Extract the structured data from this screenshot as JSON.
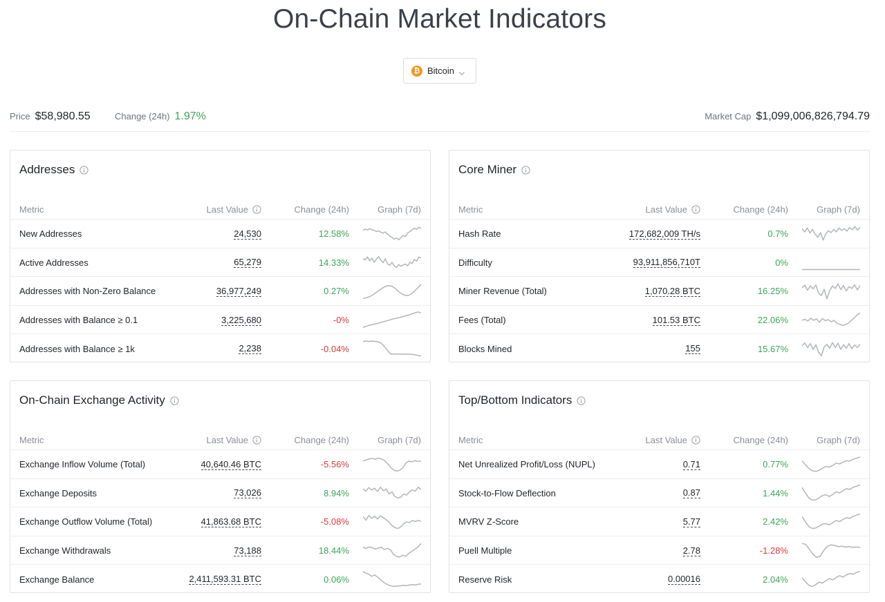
{
  "page": {
    "title": "On-Chain Market Indicators"
  },
  "coin_selector": {
    "label": "Bitcoin",
    "icon": "bitcoin-icon",
    "icon_glyph": "₿",
    "icon_color": "#f7931a"
  },
  "stats": {
    "price_label": "Price",
    "price_value": "$58,980.55",
    "change_label": "Change (24h)",
    "change_value": "1.97%",
    "market_cap_label": "Market Cap",
    "market_cap_value": "$1,099,006,826,794.79"
  },
  "colors": {
    "positive": "#3aa757",
    "negative": "#d93b3b",
    "sparkline": "#b5b9be"
  },
  "panels": [
    {
      "title": "Addresses",
      "headers": {
        "metric": "Metric",
        "last_value": "Last Value",
        "change": "Change (24h)",
        "graph": "Graph (7d)"
      },
      "rows": [
        {
          "metric": "New Addresses",
          "value": "24,530",
          "change": "12.58%",
          "trend": "positive",
          "spark": [
            0.7,
            0.78,
            0.72,
            0.8,
            0.74,
            0.7,
            0.64,
            0.68,
            0.6,
            0.55,
            0.62,
            0.5,
            0.38,
            0.32,
            0.22,
            0.28,
            0.18,
            0.3,
            0.42,
            0.36,
            0.56,
            0.64,
            0.74,
            0.82,
            0.76,
            0.88,
            0.84
          ]
        },
        {
          "metric": "Active Addresses",
          "value": "65,279",
          "change": "14.33%",
          "trend": "positive",
          "spark": [
            0.72,
            0.64,
            0.8,
            0.58,
            0.74,
            0.5,
            0.68,
            0.82,
            0.62,
            0.48,
            0.7,
            0.42,
            0.34,
            0.5,
            0.3,
            0.22,
            0.38,
            0.28,
            0.36,
            0.4,
            0.3,
            0.5,
            0.44,
            0.66,
            0.56,
            0.8,
            0.74
          ]
        },
        {
          "metric": "Addresses with Non-Zero Balance",
          "value": "36,977,249",
          "change": "0.27%",
          "trend": "positive",
          "spark": [
            0.1,
            0.14,
            0.2,
            0.3,
            0.42,
            0.56,
            0.68,
            0.78,
            0.82,
            0.78,
            0.66,
            0.5,
            0.36,
            0.28,
            0.26,
            0.36,
            0.52,
            0.7,
            0.88
          ]
        },
        {
          "metric": "Addresses with Balance ≥ 0.1",
          "value": "3,225,680",
          "change": "-0%",
          "trend": "negative",
          "spark": [
            0.1,
            0.16,
            0.22,
            0.26,
            0.3,
            0.34,
            0.4,
            0.44,
            0.48,
            0.54,
            0.58,
            0.62,
            0.66,
            0.7,
            0.76,
            0.8,
            0.86,
            0.92,
            0.96,
            0.92
          ]
        },
        {
          "metric": "Addresses with Balance ≥ 1k",
          "value": "2,238",
          "change": "-0.04%",
          "trend": "negative",
          "spark": [
            0.9,
            0.92,
            0.9,
            0.92,
            0.9,
            0.88,
            0.8,
            0.62,
            0.4,
            0.2,
            0.2,
            0.2,
            0.2,
            0.19,
            0.2,
            0.19,
            0.18,
            0.16,
            0.12,
            0.08
          ]
        }
      ]
    },
    {
      "title": "Core Miner",
      "headers": {
        "metric": "Metric",
        "last_value": "Last Value",
        "change": "Change (24h)",
        "graph": "Graph (7d)"
      },
      "rows": [
        {
          "metric": "Hash Rate",
          "value": "172,682,009 TH/s",
          "change": "0.7%",
          "trend": "positive",
          "spark": [
            0.8,
            0.62,
            0.84,
            0.56,
            0.76,
            0.48,
            0.32,
            0.58,
            0.16,
            0.52,
            0.68,
            0.58,
            0.76,
            0.62,
            0.84,
            0.7,
            0.8,
            0.66,
            0.86,
            0.74,
            0.92,
            0.72,
            0.88
          ]
        },
        {
          "metric": "Difficulty",
          "value": "93,911,856,710T",
          "change": "0%",
          "trend": "positive",
          "spark": [
            0.1,
            0.1,
            0.1,
            0.1,
            0.1,
            0.1
          ]
        },
        {
          "metric": "Miner Revenue (Total)",
          "value": "1,070.28 BTC",
          "change": "16.25%",
          "trend": "positive",
          "spark": [
            0.7,
            0.84,
            0.56,
            0.8,
            0.64,
            0.86,
            0.4,
            0.26,
            0.62,
            0.08,
            0.54,
            0.8,
            0.66,
            0.92,
            0.6,
            0.82,
            0.52,
            0.76,
            0.66,
            0.86,
            0.58,
            0.82
          ]
        },
        {
          "metric": "Fees (Total)",
          "value": "101.53 BTC",
          "change": "22.06%",
          "trend": "positive",
          "spark": [
            0.5,
            0.56,
            0.46,
            0.62,
            0.5,
            0.58,
            0.4,
            0.6,
            0.48,
            0.54,
            0.42,
            0.5,
            0.34,
            0.28,
            0.22,
            0.26,
            0.34,
            0.5,
            0.64,
            0.8,
            0.92
          ]
        },
        {
          "metric": "Blocks Mined",
          "value": "155",
          "change": "15.67%",
          "trend": "positive",
          "spark": [
            0.66,
            0.82,
            0.56,
            0.78,
            0.46,
            0.72,
            0.3,
            0.1,
            0.6,
            0.74,
            0.52,
            0.84,
            0.56,
            0.8,
            0.46,
            0.72,
            0.52,
            0.78,
            0.5,
            0.7,
            0.56,
            0.74
          ]
        }
      ]
    },
    {
      "title": "On-Chain Exchange Activity",
      "headers": {
        "metric": "Metric",
        "last_value": "Last Value",
        "change": "Change (24h)",
        "graph": "Graph (7d)"
      },
      "rows": [
        {
          "metric": "Exchange Inflow Volume (Total)",
          "value": "40,640.46 BTC",
          "change": "-5.56%",
          "trend": "negative",
          "spark": [
            0.7,
            0.76,
            0.82,
            0.84,
            0.8,
            0.86,
            0.82,
            0.74,
            0.56,
            0.36,
            0.2,
            0.14,
            0.18,
            0.32,
            0.58,
            0.7,
            0.66,
            0.72,
            0.68,
            0.7
          ]
        },
        {
          "metric": "Exchange Deposits",
          "value": "73,026",
          "change": "8.94%",
          "trend": "positive",
          "spark": [
            0.72,
            0.6,
            0.8,
            0.66,
            0.76,
            0.58,
            0.82,
            0.62,
            0.72,
            0.44,
            0.56,
            0.3,
            0.22,
            0.26,
            0.44,
            0.38,
            0.56,
            0.66,
            0.6,
            0.82,
            0.7
          ]
        },
        {
          "metric": "Exchange Outflow Volume (Total)",
          "value": "41,863.68 BTC",
          "change": "-5.08%",
          "trend": "negative",
          "spark": [
            0.8,
            0.6,
            0.86,
            0.7,
            0.82,
            0.66,
            0.84,
            0.74,
            0.62,
            0.48,
            0.3,
            0.18,
            0.14,
            0.22,
            0.4,
            0.5,
            0.46,
            0.58,
            0.52,
            0.58,
            0.54
          ]
        },
        {
          "metric": "Exchange Withdrawals",
          "value": "73,188",
          "change": "18.44%",
          "trend": "positive",
          "spark": [
            0.7,
            0.64,
            0.72,
            0.68,
            0.6,
            0.66,
            0.7,
            0.58,
            0.64,
            0.56,
            0.3,
            0.2,
            0.16,
            0.26,
            0.2,
            0.36,
            0.48,
            0.6,
            0.72,
            0.92
          ]
        },
        {
          "metric": "Exchange Balance",
          "value": "2,411,593.31 BTC",
          "change": "0.06%",
          "trend": "positive",
          "spark": [
            0.92,
            0.84,
            0.78,
            0.66,
            0.74,
            0.62,
            0.48,
            0.34,
            0.24,
            0.16,
            0.12,
            0.1,
            0.12,
            0.14,
            0.16,
            0.14,
            0.18,
            0.2,
            0.18,
            0.22,
            0.24
          ]
        }
      ]
    },
    {
      "title": "Top/Bottom Indicators",
      "headers": {
        "metric": "Metric",
        "last_value": "Last Value",
        "change": "Change (24h)",
        "graph": "Graph (7d)"
      },
      "rows": [
        {
          "metric": "Net Unrealized Profit/Loss (NUPL)",
          "value": "0.71",
          "change": "0.77%",
          "trend": "positive",
          "spark": [
            0.7,
            0.5,
            0.28,
            0.16,
            0.12,
            0.18,
            0.3,
            0.4,
            0.36,
            0.46,
            0.58,
            0.54,
            0.64,
            0.72,
            0.7,
            0.8,
            0.86,
            0.92
          ]
        },
        {
          "metric": "Stock-to-Flow Deflection",
          "value": "0.87",
          "change": "1.44%",
          "trend": "positive",
          "spark": [
            0.8,
            0.5,
            0.22,
            0.1,
            0.12,
            0.22,
            0.36,
            0.4,
            0.3,
            0.42,
            0.56,
            0.5,
            0.62,
            0.74,
            0.7,
            0.82,
            0.88,
            0.94
          ]
        },
        {
          "metric": "MVRV Z-Score",
          "value": "5.77",
          "change": "2.42%",
          "trend": "positive",
          "spark": [
            0.8,
            0.5,
            0.24,
            0.14,
            0.16,
            0.26,
            0.38,
            0.4,
            0.34,
            0.46,
            0.58,
            0.52,
            0.64,
            0.74,
            0.7,
            0.82,
            0.88,
            0.94
          ]
        },
        {
          "metric": "Puell Multiple",
          "value": "2.78",
          "change": "-1.28%",
          "trend": "negative",
          "spark": [
            0.92,
            0.86,
            0.6,
            0.32,
            0.14,
            0.2,
            0.52,
            0.76,
            0.84,
            0.8,
            0.74,
            0.76,
            0.72,
            0.74,
            0.7,
            0.72,
            0.7
          ]
        },
        {
          "metric": "Reserve Risk",
          "value": "0.00016",
          "change": "2.04%",
          "trend": "positive",
          "spark": [
            0.58,
            0.36,
            0.16,
            0.1,
            0.2,
            0.34,
            0.28,
            0.42,
            0.54,
            0.46,
            0.6,
            0.7,
            0.62,
            0.74,
            0.82,
            0.78,
            0.88,
            0.94
          ]
        }
      ]
    }
  ]
}
